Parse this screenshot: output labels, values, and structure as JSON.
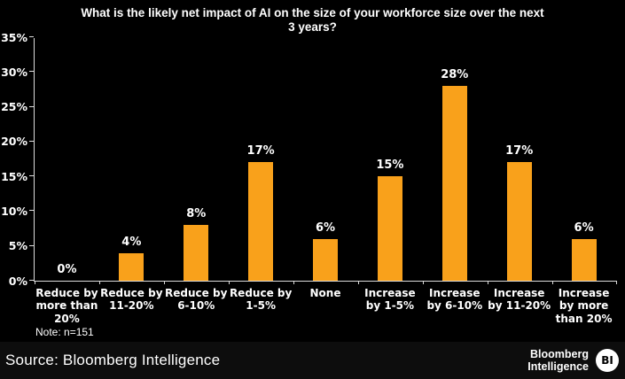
{
  "title": "What is the likely net impact of AI on the size of your workforce size over the next\n3 years?",
  "note": "Note: n=151",
  "source": "Source: Bloomberg Intelligence",
  "logo": {
    "line1": "Bloomberg",
    "line2": "Intelligence",
    "badge": "BI"
  },
  "colors": {
    "background": "#000000",
    "bar": "#F9A11B",
    "text": "#FFFFFF",
    "axis": "#DDDDDD",
    "badge_bg": "#FFFFFF",
    "badge_text": "#000000"
  },
  "chart_data": {
    "type": "bar",
    "title": "What is the likely net impact of AI on the size of your workforce size over the next 3 years?",
    "categories": [
      "Reduce by more than 20%",
      "Reduce by 11-20%",
      "Reduce by 6-10%",
      "Reduce by 1-5%",
      "None",
      "Increase by 1-5%",
      "Increase by 6-10%",
      "Increase by 11-20%",
      "Increase by more than 20%"
    ],
    "category_lines": [
      "Reduce by\nmore than\n20%",
      "Reduce by\n11-20%",
      "Reduce by\n6-10%",
      "Reduce by\n1-5%",
      "None",
      "Increase\nby 1-5%",
      "Increase\nby 6-10%",
      "Increase\nby 11-20%",
      "Increase\nby more\nthan 20%"
    ],
    "values": [
      0,
      4,
      8,
      17,
      6,
      15,
      28,
      17,
      6
    ],
    "data_labels": [
      "0%",
      "4%",
      "8%",
      "17%",
      "6%",
      "15%",
      "28%",
      "17%",
      "6%"
    ],
    "xlabel": "",
    "ylabel": "",
    "ylim": [
      0,
      35
    ],
    "yticks": [
      0,
      5,
      10,
      15,
      20,
      25,
      30,
      35
    ],
    "ytick_labels": [
      "0%",
      "5%",
      "10%",
      "15%",
      "20%",
      "25%",
      "30%",
      "35%"
    ],
    "grid": false,
    "legend": null,
    "note": "n=151",
    "source": "Bloomberg Intelligence"
  }
}
